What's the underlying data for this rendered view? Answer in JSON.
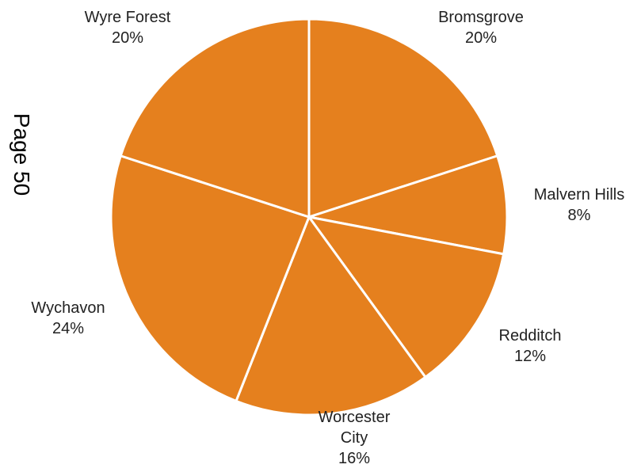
{
  "page_label": "Page 50",
  "chart_data": {
    "type": "pie",
    "categories": [
      "Bromsgrove",
      "Malvern Hills",
      "Redditch",
      "Worcester City",
      "Wychavon",
      "Wyre Forest"
    ],
    "values": [
      20,
      8,
      12,
      16,
      24,
      20
    ],
    "unit": "%",
    "label_text": [
      [
        "Bromsgrove",
        "20%"
      ],
      [
        "Malvern Hills",
        "8%"
      ],
      [
        "Redditch",
        "12%"
      ],
      [
        "Worcester",
        "City",
        "16%"
      ],
      [
        "Wychavon",
        "24%"
      ],
      [
        "Wyre Forest",
        "20%"
      ]
    ],
    "start": "12 o'clock",
    "direction": "clockwise",
    "slice_color": "#E5801E",
    "border_color": "#FFFFFF"
  }
}
